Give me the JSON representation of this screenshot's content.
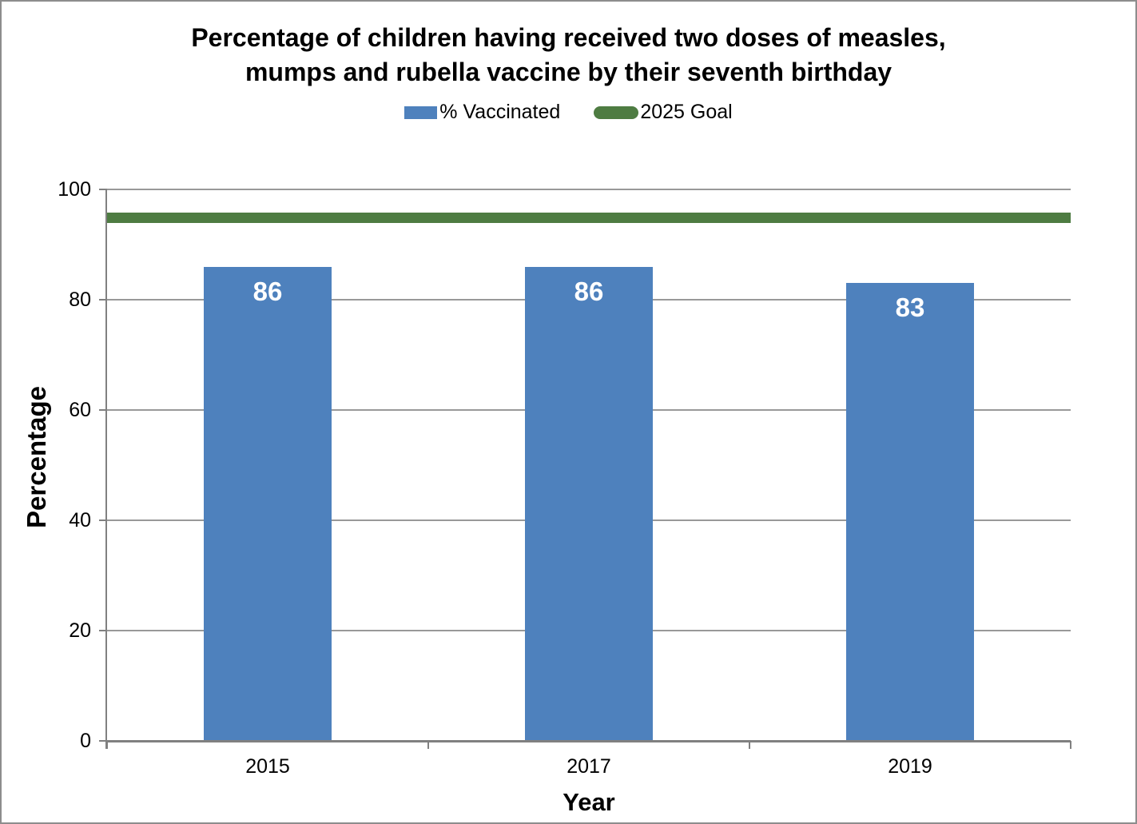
{
  "window": {
    "background_color": "#FFFFFF",
    "border_color": "#8D8D8D"
  },
  "title": {
    "line1": "Percentage of children having received two doses of measles,",
    "line2": "mumps and rubella vaccine by their seventh birthday"
  },
  "legend": {
    "position": "top-center",
    "items": [
      {
        "label": "% Vaccinated",
        "swatch": "bar-swatch",
        "color": "#4E81BD"
      },
      {
        "label": "2025 Goal",
        "swatch": "line-swatch",
        "color": "#4E7C42"
      }
    ]
  },
  "chart_data": {
    "type": "bar",
    "title": "Percentage of children having received two doses of measles, mumps and rubella vaccine by their seventh birthday",
    "categories": [
      "2015",
      "2017",
      "2019"
    ],
    "series": [
      {
        "name": "% Vaccinated",
        "type": "bar",
        "color": "#4E81BD",
        "values": [
          86,
          86,
          83
        ],
        "data_labels": [
          "86",
          "86",
          "83"
        ],
        "data_label_color": "#FFFFFF"
      },
      {
        "name": "2025 Goal",
        "type": "line",
        "color": "#4E7C42",
        "values": [
          95,
          95,
          95
        ]
      }
    ],
    "xlabel": "Year",
    "ylabel": "Percentage",
    "ylim": [
      0,
      100
    ],
    "yticks": [
      0,
      20,
      40,
      60,
      80,
      100
    ],
    "grid": true,
    "legend_position": "top",
    "gridline_color": "#999999",
    "axis_color": "#808080"
  }
}
